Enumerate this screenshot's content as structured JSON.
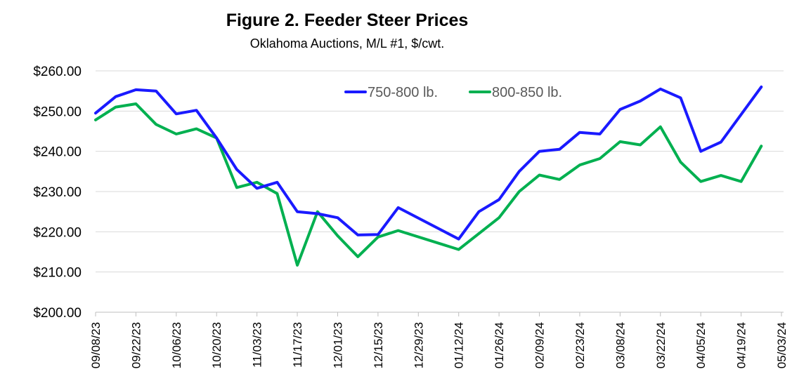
{
  "chart_data": {
    "type": "line",
    "title": "Figure 2. Feeder Steer  Prices",
    "subtitle": "Oklahoma Auctions, M/L #1, $/cwt.",
    "xlabel": "",
    "ylabel": "",
    "ylim": [
      200,
      260
    ],
    "yticks": [
      200,
      210,
      220,
      230,
      240,
      250,
      260
    ],
    "ytick_labels": [
      "$200.00",
      "$210.00",
      "$220.00",
      "$230.00",
      "$240.00",
      "$250.00",
      "$260.00"
    ],
    "xtick_labels": [
      "09/08/23",
      "09/22/23",
      "10/06/23",
      "10/20/23",
      "11/03/23",
      "11/17/23",
      "12/01/23",
      "12/15/23",
      "12/29/23",
      "01/12/24",
      "01/26/24",
      "02/09/24",
      "02/23/24",
      "03/08/24",
      "03/22/24",
      "04/05/24",
      "04/19/24",
      "05/03/24"
    ],
    "x_start": "2023-09-08",
    "x_end": "2024-05-03",
    "grid": true,
    "legend_position": "top-right",
    "series": [
      {
        "name": "750-800 lb.",
        "color": "#1a1aff",
        "points": [
          {
            "date": "2023-09-08",
            "value": 249.5
          },
          {
            "date": "2023-09-15",
            "value": 253.6
          },
          {
            "date": "2023-09-22",
            "value": 255.3
          },
          {
            "date": "2023-09-29",
            "value": 255.0
          },
          {
            "date": "2023-10-06",
            "value": 249.3
          },
          {
            "date": "2023-10-13",
            "value": 250.2
          },
          {
            "date": "2023-10-20",
            "value": 243.3
          },
          {
            "date": "2023-10-27",
            "value": 235.5
          },
          {
            "date": "2023-11-03",
            "value": 230.8
          },
          {
            "date": "2023-11-10",
            "value": 232.3
          },
          {
            "date": "2023-11-17",
            "value": 225.0
          },
          {
            "date": "2023-11-24",
            "value": 224.5
          },
          {
            "date": "2023-12-01",
            "value": 223.5
          },
          {
            "date": "2023-12-08",
            "value": 219.2
          },
          {
            "date": "2023-12-15",
            "value": 219.3
          },
          {
            "date": "2023-12-22",
            "value": 226.0
          },
          {
            "date": "2024-01-12",
            "value": 218.2
          },
          {
            "date": "2024-01-19",
            "value": 225.0
          },
          {
            "date": "2024-01-26",
            "value": 228.0
          },
          {
            "date": "2024-02-02",
            "value": 235.0
          },
          {
            "date": "2024-02-09",
            "value": 240.0
          },
          {
            "date": "2024-02-16",
            "value": 240.5
          },
          {
            "date": "2024-02-23",
            "value": 244.7
          },
          {
            "date": "2024-03-01",
            "value": 244.3
          },
          {
            "date": "2024-03-08",
            "value": 250.4
          },
          {
            "date": "2024-03-15",
            "value": 252.5
          },
          {
            "date": "2024-03-22",
            "value": 255.5
          },
          {
            "date": "2024-03-29",
            "value": 253.3
          },
          {
            "date": "2024-04-05",
            "value": 240.0
          },
          {
            "date": "2024-04-12",
            "value": 242.3
          },
          {
            "date": "2024-04-26",
            "value": 256.0
          }
        ]
      },
      {
        "name": "800-850 lb.",
        "color": "#00b050",
        "points": [
          {
            "date": "2023-09-08",
            "value": 247.8
          },
          {
            "date": "2023-09-15",
            "value": 251.0
          },
          {
            "date": "2023-09-22",
            "value": 251.8
          },
          {
            "date": "2023-09-29",
            "value": 246.7
          },
          {
            "date": "2023-10-06",
            "value": 244.3
          },
          {
            "date": "2023-10-13",
            "value": 245.6
          },
          {
            "date": "2023-10-20",
            "value": 243.3
          },
          {
            "date": "2023-10-27",
            "value": 231.0
          },
          {
            "date": "2023-11-03",
            "value": 232.3
          },
          {
            "date": "2023-11-10",
            "value": 229.5
          },
          {
            "date": "2023-11-17",
            "value": 211.7
          },
          {
            "date": "2023-11-24",
            "value": 225.0
          },
          {
            "date": "2023-12-01",
            "value": 219.0
          },
          {
            "date": "2023-12-08",
            "value": 213.8
          },
          {
            "date": "2023-12-15",
            "value": 218.7
          },
          {
            "date": "2023-12-22",
            "value": 220.3
          },
          {
            "date": "2024-01-12",
            "value": 215.6
          },
          {
            "date": "2024-01-26",
            "value": 223.5
          },
          {
            "date": "2024-02-02",
            "value": 230.0
          },
          {
            "date": "2024-02-09",
            "value": 234.1
          },
          {
            "date": "2024-02-16",
            "value": 233.0
          },
          {
            "date": "2024-02-23",
            "value": 236.6
          },
          {
            "date": "2024-03-01",
            "value": 238.2
          },
          {
            "date": "2024-03-08",
            "value": 242.4
          },
          {
            "date": "2024-03-15",
            "value": 241.6
          },
          {
            "date": "2024-03-22",
            "value": 246.1
          },
          {
            "date": "2024-03-29",
            "value": 237.3
          },
          {
            "date": "2024-04-05",
            "value": 232.5
          },
          {
            "date": "2024-04-12",
            "value": 234.0
          },
          {
            "date": "2024-04-19",
            "value": 232.5
          },
          {
            "date": "2024-04-26",
            "value": 241.3
          }
        ]
      }
    ]
  }
}
